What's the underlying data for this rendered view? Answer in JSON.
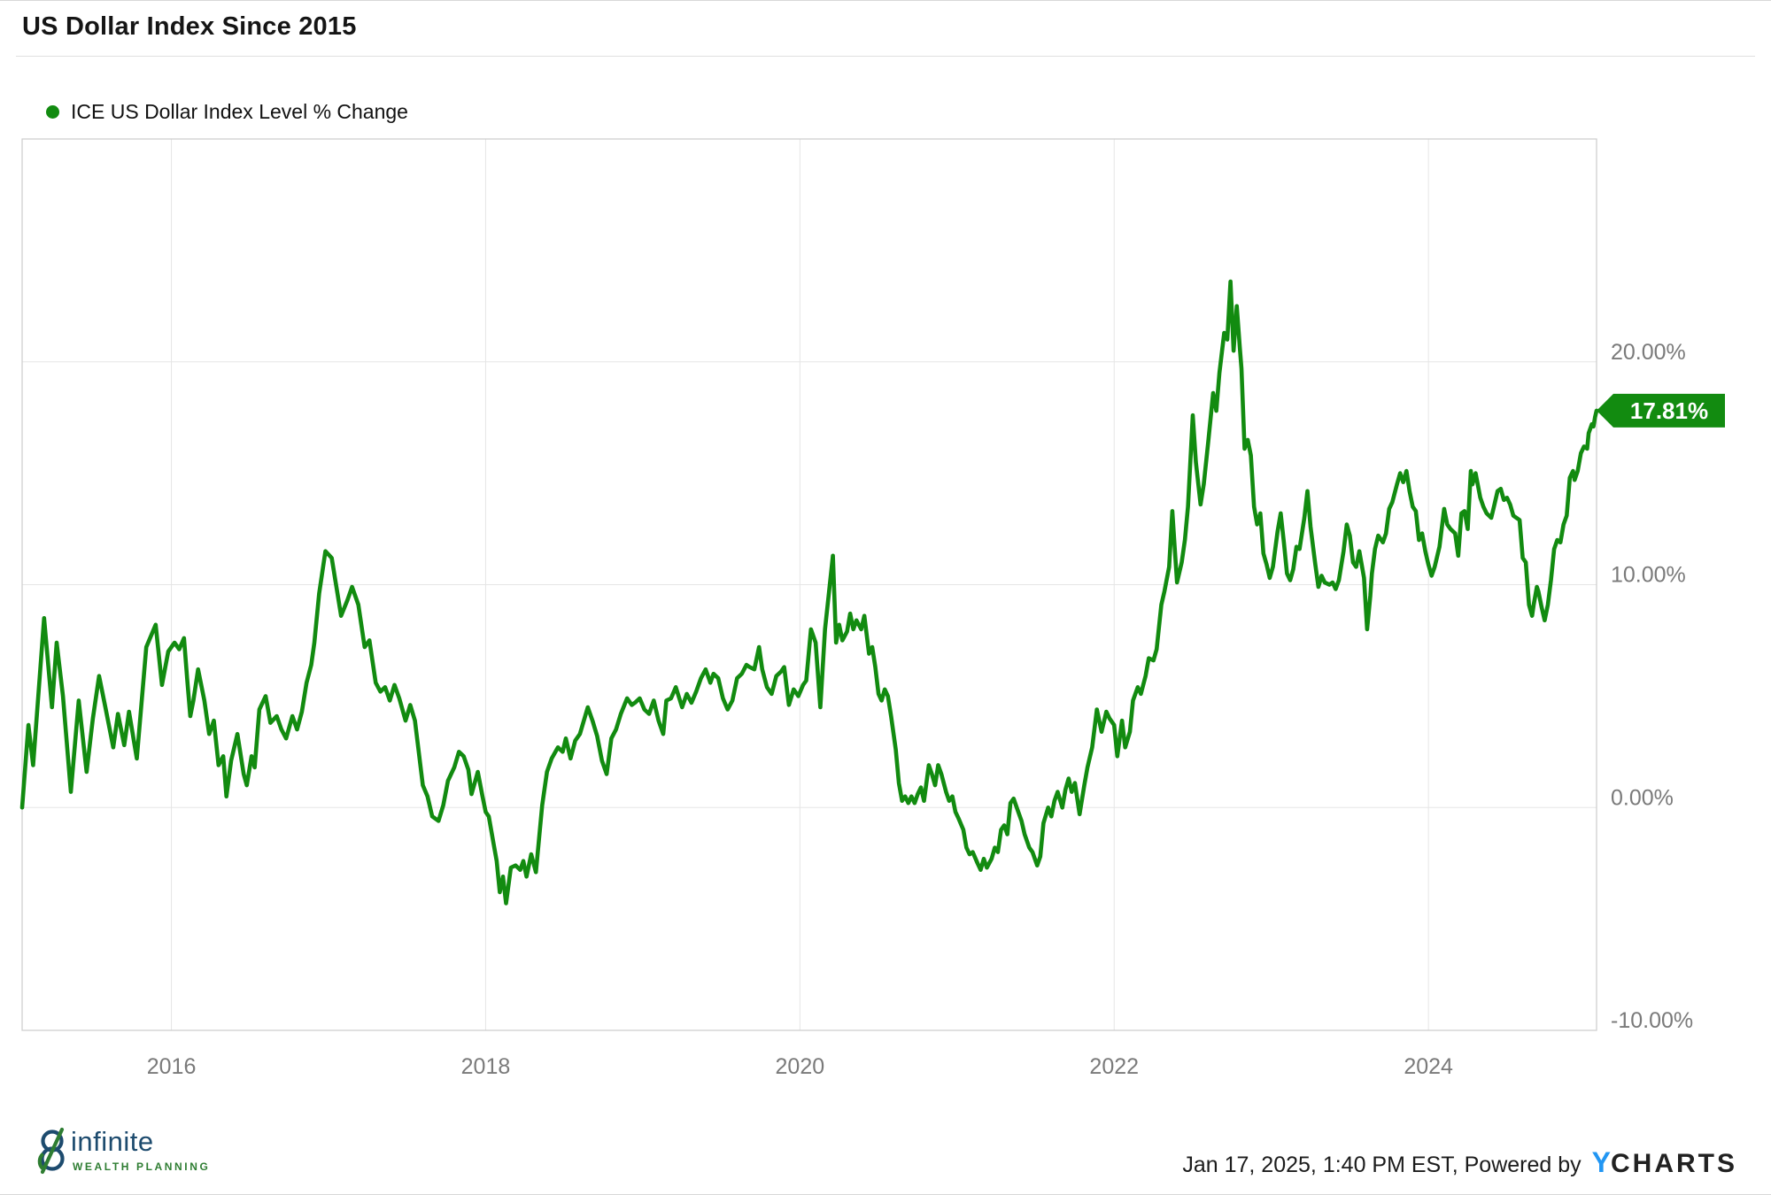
{
  "header": {
    "title": "US Dollar Index Since 2015"
  },
  "legend": {
    "label": "ICE US Dollar Index Level % Change"
  },
  "badge": {
    "label": "17.81%"
  },
  "footer": {
    "brand": {
      "name": "infinite",
      "tagline": "WEALTH PLANNING"
    },
    "timestamp": "Jan 17, 2025, 1:40 PM EST",
    "powered_by": "Powered by",
    "provider": {
      "y": "Y",
      "charts": "CHARTS"
    }
  },
  "colors": {
    "line": "#128b10",
    "badge_bg": "#128b10",
    "badge_text": "#ffffff",
    "grid": "#e5e5e5",
    "plot_border": "#cccccc",
    "tick_text": "#7a7a7a",
    "brand_navy": "#1d4b6e",
    "brand_green": "#2e7d32",
    "ycharts_blue": "#2196f3"
  },
  "chart_data": {
    "type": "line",
    "title": "US Dollar Index Since 2015",
    "series_name": "ICE US Dollar Index Level % Change",
    "unit": "percent",
    "grid": true,
    "legend_position": "top-left",
    "last_value": 17.81,
    "last_value_label": "17.81%",
    "x_range": [
      2015.05,
      2025.07
    ],
    "y_axis_range": [
      -10,
      30
    ],
    "x_ticks": [
      {
        "value": 2016,
        "label": "2016"
      },
      {
        "value": 2018,
        "label": "2018"
      },
      {
        "value": 2020,
        "label": "2020"
      },
      {
        "value": 2022,
        "label": "2022"
      },
      {
        "value": 2024,
        "label": "2024"
      }
    ],
    "y_ticks": [
      {
        "value": 20,
        "label": "20.00%"
      },
      {
        "value": 10,
        "label": "10.00%"
      },
      {
        "value": 0,
        "label": "0.00%"
      },
      {
        "value": -10,
        "label": "-10.00%"
      }
    ],
    "points": [
      [
        2015.05,
        0.0
      ],
      [
        2015.09,
        3.7
      ],
      [
        2015.12,
        1.9
      ],
      [
        2015.19,
        8.5
      ],
      [
        2015.24,
        4.5
      ],
      [
        2015.27,
        7.4
      ],
      [
        2015.31,
        5.0
      ],
      [
        2015.36,
        0.7
      ],
      [
        2015.41,
        4.8
      ],
      [
        2015.46,
        1.6
      ],
      [
        2015.5,
        4.0
      ],
      [
        2015.54,
        5.9
      ],
      [
        2015.58,
        4.5
      ],
      [
        2015.63,
        2.7
      ],
      [
        2015.66,
        4.2
      ],
      [
        2015.7,
        2.8
      ],
      [
        2015.73,
        4.3
      ],
      [
        2015.78,
        2.2
      ],
      [
        2015.84,
        7.2
      ],
      [
        2015.9,
        8.2
      ],
      [
        2015.94,
        5.5
      ],
      [
        2015.98,
        7.0
      ],
      [
        2016.02,
        7.4
      ],
      [
        2016.05,
        7.1
      ],
      [
        2016.08,
        7.6
      ],
      [
        2016.1,
        5.8
      ],
      [
        2016.12,
        4.1
      ],
      [
        2016.14,
        4.8
      ],
      [
        2016.17,
        6.2
      ],
      [
        2016.21,
        4.8
      ],
      [
        2016.24,
        3.3
      ],
      [
        2016.27,
        3.9
      ],
      [
        2016.3,
        1.9
      ],
      [
        2016.33,
        2.3
      ],
      [
        2016.35,
        0.5
      ],
      [
        2016.38,
        2.1
      ],
      [
        2016.42,
        3.3
      ],
      [
        2016.46,
        1.5
      ],
      [
        2016.48,
        1.0
      ],
      [
        2016.51,
        2.3
      ],
      [
        2016.53,
        1.8
      ],
      [
        2016.56,
        4.4
      ],
      [
        2016.6,
        5.0
      ],
      [
        2016.63,
        3.8
      ],
      [
        2016.67,
        4.1
      ],
      [
        2016.7,
        3.5
      ],
      [
        2016.73,
        3.1
      ],
      [
        2016.77,
        4.1
      ],
      [
        2016.8,
        3.5
      ],
      [
        2016.83,
        4.3
      ],
      [
        2016.86,
        5.6
      ],
      [
        2016.89,
        6.4
      ],
      [
        2016.91,
        7.4
      ],
      [
        2016.94,
        9.6
      ],
      [
        2016.98,
        11.5
      ],
      [
        2017.02,
        11.2
      ],
      [
        2017.05,
        9.9
      ],
      [
        2017.08,
        8.6
      ],
      [
        2017.12,
        9.3
      ],
      [
        2017.15,
        9.9
      ],
      [
        2017.19,
        9.1
      ],
      [
        2017.23,
        7.2
      ],
      [
        2017.26,
        7.5
      ],
      [
        2017.3,
        5.6
      ],
      [
        2017.33,
        5.2
      ],
      [
        2017.36,
        5.4
      ],
      [
        2017.39,
        4.8
      ],
      [
        2017.42,
        5.5
      ],
      [
        2017.45,
        4.9
      ],
      [
        2017.49,
        3.9
      ],
      [
        2017.52,
        4.6
      ],
      [
        2017.55,
        3.9
      ],
      [
        2017.6,
        1.0
      ],
      [
        2017.63,
        0.5
      ],
      [
        2017.66,
        -0.4
      ],
      [
        2017.7,
        -0.6
      ],
      [
        2017.73,
        0.1
      ],
      [
        2017.76,
        1.2
      ],
      [
        2017.8,
        1.8
      ],
      [
        2017.83,
        2.5
      ],
      [
        2017.86,
        2.3
      ],
      [
        2017.89,
        1.7
      ],
      [
        2017.91,
        0.6
      ],
      [
        2017.95,
        1.6
      ],
      [
        2017.98,
        0.5
      ],
      [
        2018.0,
        -0.2
      ],
      [
        2018.02,
        -0.4
      ],
      [
        2018.05,
        -1.6
      ],
      [
        2018.07,
        -2.4
      ],
      [
        2018.09,
        -3.8
      ],
      [
        2018.11,
        -3.1
      ],
      [
        2018.13,
        -4.3
      ],
      [
        2018.16,
        -2.7
      ],
      [
        2018.19,
        -2.6
      ],
      [
        2018.22,
        -2.8
      ],
      [
        2018.24,
        -2.4
      ],
      [
        2018.26,
        -3.1
      ],
      [
        2018.29,
        -2.1
      ],
      [
        2018.32,
        -2.9
      ],
      [
        2018.36,
        0.1
      ],
      [
        2018.39,
        1.6
      ],
      [
        2018.42,
        2.2
      ],
      [
        2018.46,
        2.7
      ],
      [
        2018.49,
        2.5
      ],
      [
        2018.51,
        3.1
      ],
      [
        2018.54,
        2.2
      ],
      [
        2018.57,
        3.0
      ],
      [
        2018.6,
        3.3
      ],
      [
        2018.65,
        4.5
      ],
      [
        2018.68,
        3.9
      ],
      [
        2018.71,
        3.2
      ],
      [
        2018.74,
        2.1
      ],
      [
        2018.77,
        1.5
      ],
      [
        2018.8,
        3.1
      ],
      [
        2018.83,
        3.5
      ],
      [
        2018.86,
        4.2
      ],
      [
        2018.9,
        4.9
      ],
      [
        2018.93,
        4.6
      ],
      [
        2018.95,
        4.7
      ],
      [
        2018.98,
        4.9
      ],
      [
        2019.01,
        4.4
      ],
      [
        2019.04,
        4.2
      ],
      [
        2019.07,
        4.8
      ],
      [
        2019.1,
        3.9
      ],
      [
        2019.13,
        3.3
      ],
      [
        2019.15,
        4.8
      ],
      [
        2019.18,
        4.9
      ],
      [
        2019.21,
        5.4
      ],
      [
        2019.25,
        4.5
      ],
      [
        2019.28,
        5.1
      ],
      [
        2019.31,
        4.7
      ],
      [
        2019.34,
        5.2
      ],
      [
        2019.37,
        5.8
      ],
      [
        2019.4,
        6.2
      ],
      [
        2019.43,
        5.6
      ],
      [
        2019.45,
        6.0
      ],
      [
        2019.48,
        5.8
      ],
      [
        2019.51,
        4.9
      ],
      [
        2019.54,
        4.4
      ],
      [
        2019.57,
        4.8
      ],
      [
        2019.6,
        5.8
      ],
      [
        2019.63,
        6.0
      ],
      [
        2019.66,
        6.4
      ],
      [
        2019.68,
        6.3
      ],
      [
        2019.71,
        6.2
      ],
      [
        2019.74,
        7.2
      ],
      [
        2019.76,
        6.2
      ],
      [
        2019.79,
        5.4
      ],
      [
        2019.82,
        5.1
      ],
      [
        2019.85,
        5.9
      ],
      [
        2019.88,
        6.1
      ],
      [
        2019.9,
        6.3
      ],
      [
        2019.93,
        4.6
      ],
      [
        2019.96,
        5.3
      ],
      [
        2019.99,
        5.0
      ],
      [
        2020.02,
        5.5
      ],
      [
        2020.04,
        5.7
      ],
      [
        2020.07,
        8.0
      ],
      [
        2020.1,
        7.4
      ],
      [
        2020.13,
        4.5
      ],
      [
        2020.16,
        8.0
      ],
      [
        2020.21,
        11.3
      ],
      [
        2020.23,
        7.4
      ],
      [
        2020.25,
        8.2
      ],
      [
        2020.27,
        7.5
      ],
      [
        2020.3,
        7.9
      ],
      [
        2020.32,
        8.7
      ],
      [
        2020.34,
        8.0
      ],
      [
        2020.36,
        8.4
      ],
      [
        2020.39,
        8.0
      ],
      [
        2020.41,
        8.6
      ],
      [
        2020.44,
        6.9
      ],
      [
        2020.46,
        7.2
      ],
      [
        2020.48,
        6.3
      ],
      [
        2020.5,
        5.1
      ],
      [
        2020.52,
        4.8
      ],
      [
        2020.54,
        5.3
      ],
      [
        2020.56,
        5.0
      ],
      [
        2020.58,
        4.1
      ],
      [
        2020.61,
        2.6
      ],
      [
        2020.63,
        1.1
      ],
      [
        2020.65,
        0.3
      ],
      [
        2020.67,
        0.5
      ],
      [
        2020.69,
        0.2
      ],
      [
        2020.71,
        0.5
      ],
      [
        2020.73,
        0.2
      ],
      [
        2020.75,
        0.6
      ],
      [
        2020.77,
        0.9
      ],
      [
        2020.79,
        0.3
      ],
      [
        2020.82,
        1.9
      ],
      [
        2020.84,
        1.5
      ],
      [
        2020.86,
        1.0
      ],
      [
        2020.88,
        1.9
      ],
      [
        2020.9,
        1.5
      ],
      [
        2020.93,
        0.7
      ],
      [
        2020.95,
        0.3
      ],
      [
        2020.97,
        0.5
      ],
      [
        2020.99,
        -0.2
      ],
      [
        2021.01,
        -0.5
      ],
      [
        2021.04,
        -1.0
      ],
      [
        2021.06,
        -1.8
      ],
      [
        2021.08,
        -2.1
      ],
      [
        2021.1,
        -2.0
      ],
      [
        2021.13,
        -2.5
      ],
      [
        2021.15,
        -2.8
      ],
      [
        2021.17,
        -2.3
      ],
      [
        2021.19,
        -2.7
      ],
      [
        2021.22,
        -2.3
      ],
      [
        2021.24,
        -1.8
      ],
      [
        2021.26,
        -2.0
      ],
      [
        2021.28,
        -1.0
      ],
      [
        2021.3,
        -0.8
      ],
      [
        2021.32,
        -1.2
      ],
      [
        2021.34,
        0.2
      ],
      [
        2021.36,
        0.4
      ],
      [
        2021.38,
        0.0
      ],
      [
        2021.41,
        -0.6
      ],
      [
        2021.43,
        -1.2
      ],
      [
        2021.46,
        -1.8
      ],
      [
        2021.48,
        -2.0
      ],
      [
        2021.51,
        -2.6
      ],
      [
        2021.53,
        -2.2
      ],
      [
        2021.55,
        -0.7
      ],
      [
        2021.58,
        0.0
      ],
      [
        2021.6,
        -0.4
      ],
      [
        2021.62,
        0.3
      ],
      [
        2021.64,
        0.7
      ],
      [
        2021.67,
        0.0
      ],
      [
        2021.69,
        0.8
      ],
      [
        2021.71,
        1.3
      ],
      [
        2021.73,
        0.7
      ],
      [
        2021.75,
        1.1
      ],
      [
        2021.78,
        -0.3
      ],
      [
        2021.81,
        1.0
      ],
      [
        2021.83,
        1.8
      ],
      [
        2021.86,
        2.7
      ],
      [
        2021.89,
        4.4
      ],
      [
        2021.92,
        3.4
      ],
      [
        2021.95,
        4.3
      ],
      [
        2021.97,
        4.0
      ],
      [
        2022.0,
        3.7
      ],
      [
        2022.02,
        2.3
      ],
      [
        2022.05,
        3.9
      ],
      [
        2022.07,
        2.7
      ],
      [
        2022.1,
        3.4
      ],
      [
        2022.12,
        4.8
      ],
      [
        2022.15,
        5.4
      ],
      [
        2022.17,
        5.1
      ],
      [
        2022.2,
        5.9
      ],
      [
        2022.22,
        6.7
      ],
      [
        2022.25,
        6.6
      ],
      [
        2022.27,
        7.1
      ],
      [
        2022.3,
        9.1
      ],
      [
        2022.32,
        9.7
      ],
      [
        2022.35,
        10.8
      ],
      [
        2022.37,
        13.3
      ],
      [
        2022.4,
        10.1
      ],
      [
        2022.43,
        11.0
      ],
      [
        2022.45,
        12.0
      ],
      [
        2022.47,
        13.5
      ],
      [
        2022.5,
        17.6
      ],
      [
        2022.52,
        15.5
      ],
      [
        2022.55,
        13.6
      ],
      [
        2022.57,
        14.5
      ],
      [
        2022.6,
        16.5
      ],
      [
        2022.63,
        18.6
      ],
      [
        2022.65,
        17.8
      ],
      [
        2022.67,
        19.5
      ],
      [
        2022.7,
        21.3
      ],
      [
        2022.72,
        21.0
      ],
      [
        2022.74,
        23.6
      ],
      [
        2022.76,
        20.5
      ],
      [
        2022.78,
        22.5
      ],
      [
        2022.8,
        20.6
      ],
      [
        2022.81,
        19.7
      ],
      [
        2022.83,
        16.1
      ],
      [
        2022.85,
        16.5
      ],
      [
        2022.87,
        15.8
      ],
      [
        2022.89,
        13.5
      ],
      [
        2022.91,
        12.7
      ],
      [
        2022.93,
        13.2
      ],
      [
        2022.95,
        11.4
      ],
      [
        2022.97,
        10.9
      ],
      [
        2022.99,
        10.3
      ],
      [
        2023.01,
        10.8
      ],
      [
        2023.04,
        12.4
      ],
      [
        2023.06,
        13.2
      ],
      [
        2023.08,
        11.9
      ],
      [
        2023.1,
        10.5
      ],
      [
        2023.12,
        10.2
      ],
      [
        2023.14,
        10.7
      ],
      [
        2023.16,
        11.7
      ],
      [
        2023.18,
        11.6
      ],
      [
        2023.21,
        13.0
      ],
      [
        2023.23,
        14.2
      ],
      [
        2023.25,
        12.6
      ],
      [
        2023.28,
        10.9
      ],
      [
        2023.3,
        9.9
      ],
      [
        2023.32,
        10.4
      ],
      [
        2023.34,
        10.1
      ],
      [
        2023.37,
        10.0
      ],
      [
        2023.39,
        10.1
      ],
      [
        2023.41,
        9.8
      ],
      [
        2023.43,
        10.2
      ],
      [
        2023.46,
        11.5
      ],
      [
        2023.48,
        12.7
      ],
      [
        2023.5,
        12.2
      ],
      [
        2023.52,
        11.0
      ],
      [
        2023.54,
        10.8
      ],
      [
        2023.56,
        11.5
      ],
      [
        2023.59,
        10.3
      ],
      [
        2023.61,
        8.0
      ],
      [
        2023.63,
        9.5
      ],
      [
        2023.64,
        10.5
      ],
      [
        2023.66,
        11.6
      ],
      [
        2023.68,
        12.2
      ],
      [
        2023.71,
        11.9
      ],
      [
        2023.73,
        12.3
      ],
      [
        2023.75,
        13.4
      ],
      [
        2023.77,
        13.7
      ],
      [
        2023.8,
        14.5
      ],
      [
        2023.82,
        15.0
      ],
      [
        2023.84,
        14.6
      ],
      [
        2023.86,
        15.1
      ],
      [
        2023.88,
        14.2
      ],
      [
        2023.9,
        13.5
      ],
      [
        2023.92,
        13.3
      ],
      [
        2023.94,
        12.0
      ],
      [
        2023.96,
        12.3
      ],
      [
        2023.98,
        11.5
      ],
      [
        2024.0,
        10.9
      ],
      [
        2024.02,
        10.4
      ],
      [
        2024.04,
        10.8
      ],
      [
        2024.07,
        11.7
      ],
      [
        2024.1,
        13.4
      ],
      [
        2024.12,
        12.7
      ],
      [
        2024.14,
        12.5
      ],
      [
        2024.17,
        12.3
      ],
      [
        2024.19,
        11.3
      ],
      [
        2024.21,
        13.2
      ],
      [
        2024.23,
        13.3
      ],
      [
        2024.25,
        12.5
      ],
      [
        2024.27,
        15.1
      ],
      [
        2024.28,
        14.5
      ],
      [
        2024.3,
        15.0
      ],
      [
        2024.33,
        13.9
      ],
      [
        2024.35,
        13.5
      ],
      [
        2024.37,
        13.2
      ],
      [
        2024.4,
        13.0
      ],
      [
        2024.42,
        13.6
      ],
      [
        2024.44,
        14.2
      ],
      [
        2024.46,
        14.3
      ],
      [
        2024.48,
        13.8
      ],
      [
        2024.5,
        13.9
      ],
      [
        2024.52,
        13.6
      ],
      [
        2024.54,
        13.1
      ],
      [
        2024.56,
        13.0
      ],
      [
        2024.58,
        12.9
      ],
      [
        2024.6,
        11.2
      ],
      [
        2024.62,
        11.0
      ],
      [
        2024.64,
        9.1
      ],
      [
        2024.66,
        8.6
      ],
      [
        2024.67,
        9.1
      ],
      [
        2024.69,
        9.9
      ],
      [
        2024.7,
        9.7
      ],
      [
        2024.72,
        9.0
      ],
      [
        2024.74,
        8.4
      ],
      [
        2024.76,
        9.1
      ],
      [
        2024.78,
        10.2
      ],
      [
        2024.8,
        11.6
      ],
      [
        2024.82,
        12.0
      ],
      [
        2024.84,
        11.9
      ],
      [
        2024.86,
        12.7
      ],
      [
        2024.88,
        13.1
      ],
      [
        2024.9,
        14.8
      ],
      [
        2024.92,
        15.1
      ],
      [
        2024.93,
        14.7
      ],
      [
        2024.95,
        15.1
      ],
      [
        2024.97,
        15.9
      ],
      [
        2024.99,
        16.2
      ],
      [
        2025.01,
        16.1
      ],
      [
        2025.02,
        16.8
      ],
      [
        2025.04,
        17.2
      ],
      [
        2025.05,
        17.1
      ],
      [
        2025.06,
        17.5
      ],
      [
        2025.07,
        17.81
      ]
    ]
  }
}
